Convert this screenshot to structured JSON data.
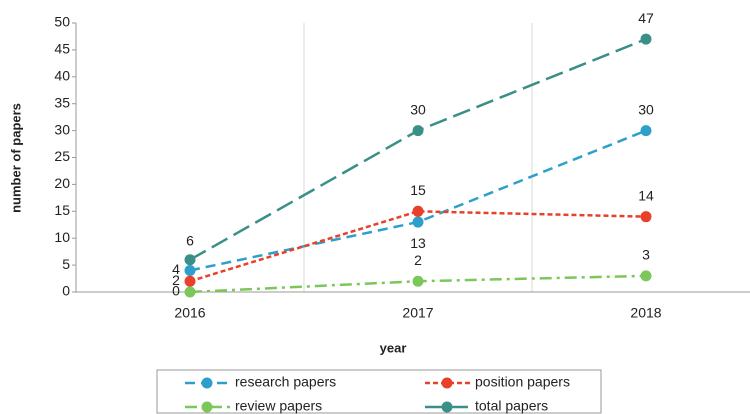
{
  "chart_data": {
    "type": "line",
    "x_label": "year",
    "y_label": "number of papers",
    "categories": [
      "2016",
      "2017",
      "2018"
    ],
    "series": [
      {
        "name": "research papers",
        "color": "#2e9fcb",
        "values": [
          4,
          13,
          30
        ]
      },
      {
        "name": "position papers",
        "color": "#e8402b",
        "values": [
          2,
          15,
          14
        ]
      },
      {
        "name": "review papers",
        "color": "#7cc75a",
        "values": [
          0,
          2,
          3
        ]
      },
      {
        "name": "total papers",
        "color": "#3a8f87",
        "values": [
          6,
          30,
          47
        ]
      }
    ],
    "ylim": [
      0,
      50
    ],
    "yticks": [
      0,
      5,
      10,
      15,
      20,
      25,
      30,
      35,
      40,
      45,
      50
    ],
    "grid": true,
    "legend": "bottom"
  }
}
